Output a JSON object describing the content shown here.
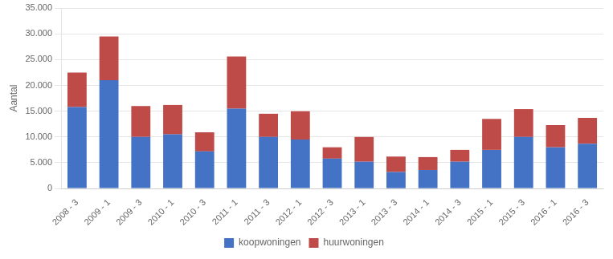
{
  "chart_data": {
    "type": "bar",
    "stacked": true,
    "categories": [
      "2008 - 3",
      "2009 - 1",
      "2009 - 3",
      "2010 - 1",
      "2010 - 3",
      "2011 - 1",
      "2011 - 3",
      "2012 - 1",
      "2012 - 3",
      "2013 - 1",
      "2013 - 3",
      "2014 - 1",
      "2014 - 3",
      "2015 - 1",
      "2015 - 3",
      "2016 - 1",
      "2016 - 3"
    ],
    "series": [
      {
        "name": "koopwoningen",
        "color": "#4472C4",
        "values": [
          15800,
          21000,
          10000,
          10500,
          7200,
          15500,
          10000,
          9500,
          5800,
          5200,
          3200,
          3600,
          5200,
          7500,
          10000,
          8000,
          8700
        ]
      },
      {
        "name": "huurwoningen",
        "color": "#BE4B48",
        "values": [
          6700,
          8500,
          6000,
          5700,
          3700,
          10100,
          4500,
          5500,
          2200,
          4800,
          3000,
          2500,
          2300,
          6000,
          5400,
          4300,
          5000
        ]
      }
    ],
    "ylabel": "Aantal",
    "ylim": [
      0,
      35000
    ],
    "yticks": [
      0,
      {
        "value": 5000,
        "label": "5.000"
      },
      {
        "value": 10000,
        "label": "10.000"
      },
      {
        "value": 15000,
        "label": "15.000"
      },
      {
        "value": 20000,
        "label": "20.000"
      },
      {
        "value": 25000,
        "label": "25.000"
      },
      {
        "value": 30000,
        "label": "30.000"
      },
      {
        "value": 35000,
        "label": "35.000"
      }
    ],
    "grid": true,
    "legend": "bottom"
  }
}
